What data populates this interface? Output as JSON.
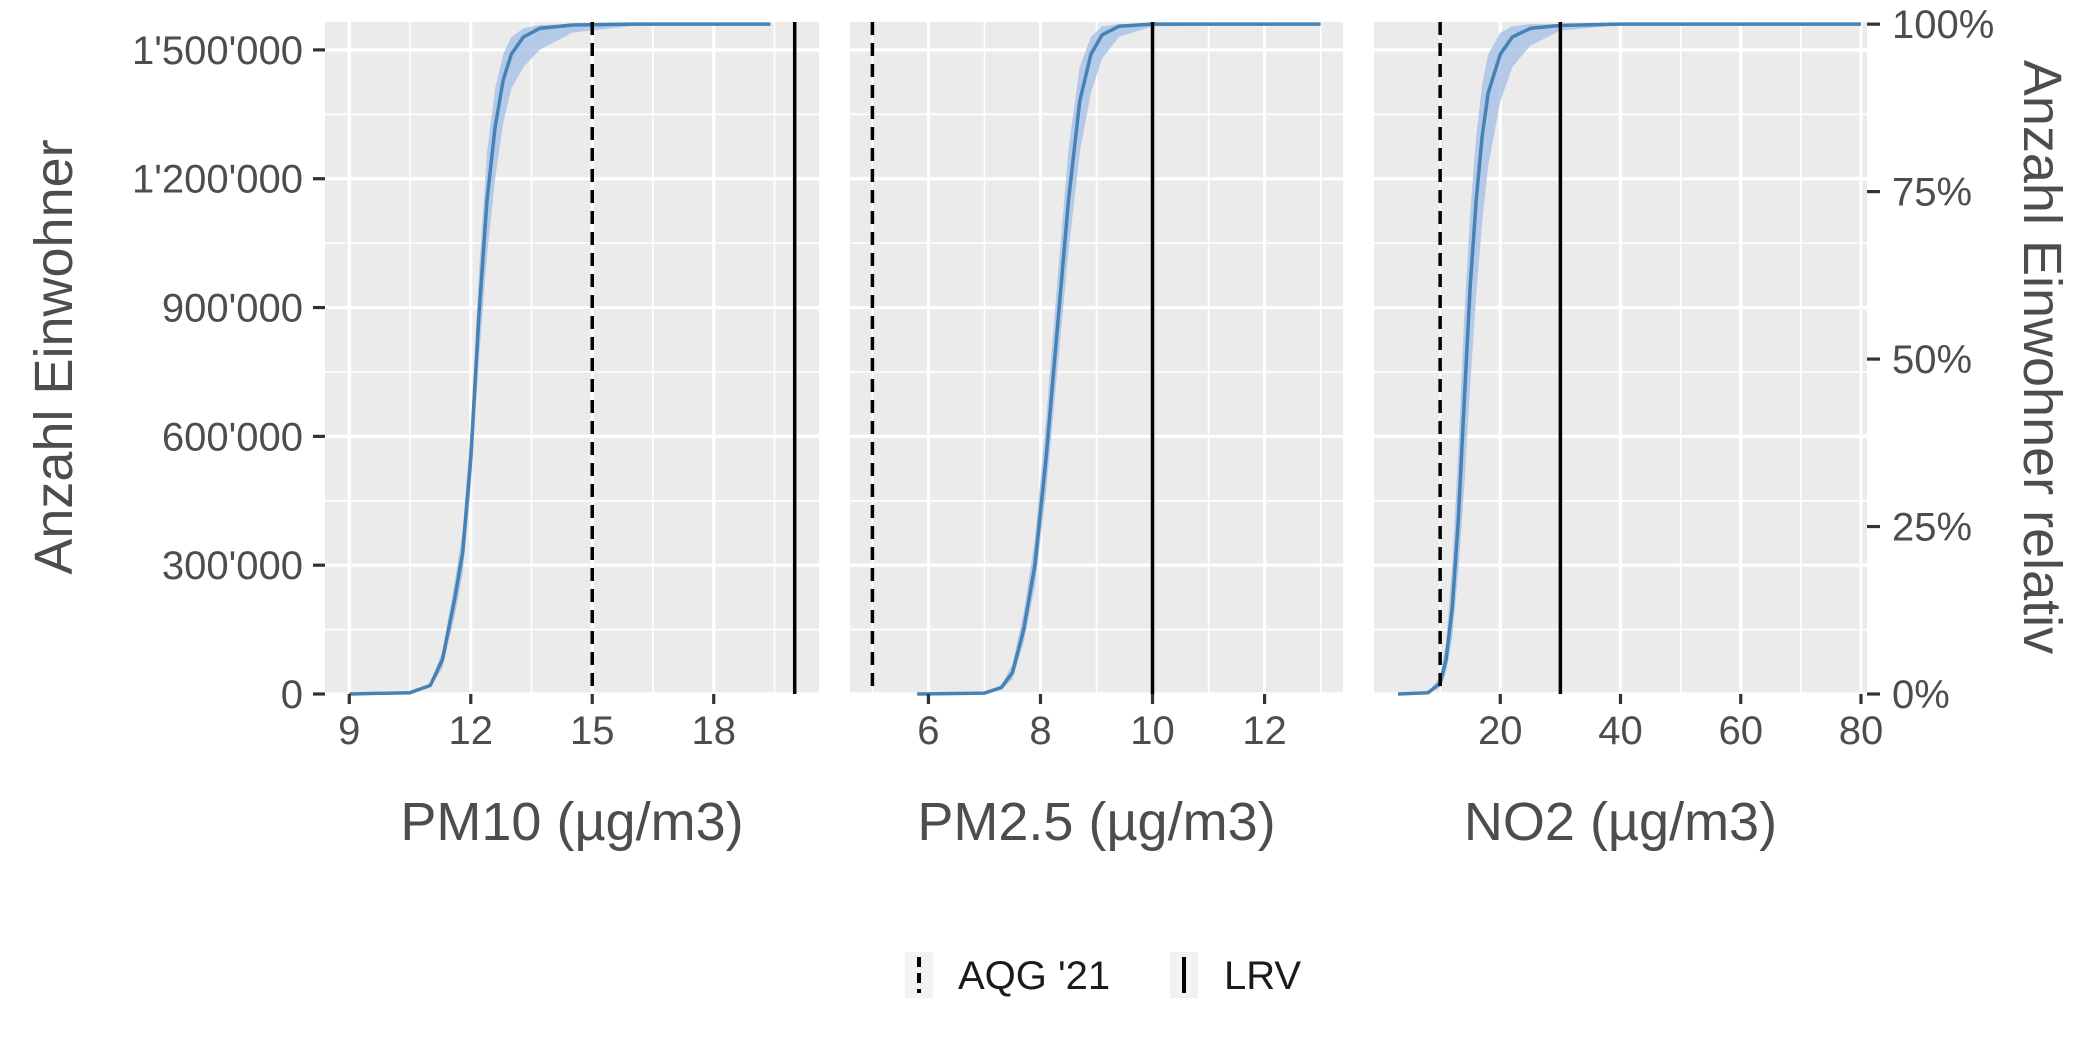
{
  "colors": {
    "panel_background": "#ebebeb",
    "grid": "#ffffff",
    "line": "#4682b4",
    "band": "#a9c3e6",
    "reference": "#000000",
    "tick_text": "#4d4d4d"
  },
  "chart_data": {
    "type": "line",
    "layout": "faceted cumulative distribution, 3 panels sharing y-axis",
    "y_left": {
      "label": "Anzahl Einwohner",
      "ticks": [
        "0",
        "300'000",
        "600'000",
        "900'000",
        "1'200'000",
        "1'500'000"
      ],
      "tick_values": [
        0,
        300000,
        600000,
        900000,
        1200000,
        1500000
      ],
      "range": [
        0,
        1565000
      ]
    },
    "y_right": {
      "label": "Anzahl Einwohner relativ",
      "ticks": [
        "0%",
        "25%",
        "50%",
        "75%",
        "100%"
      ],
      "tick_values": [
        0,
        0.25,
        0.5,
        0.75,
        1.0
      ]
    },
    "grid": true,
    "legend": {
      "position": "bottom",
      "items": [
        {
          "label": "AQG '21",
          "linetype": "dashed"
        },
        {
          "label": "LRV",
          "linetype": "solid"
        }
      ]
    },
    "panels": [
      {
        "xlabel": "PM10 (µg/m3)",
        "x_ticks": [
          "9",
          "12",
          "15",
          "18"
        ],
        "x_tick_values": [
          9,
          12,
          15,
          18
        ],
        "x_range": [
          8.4,
          20.6
        ],
        "aqg": 15,
        "lrv": 20,
        "series": [
          {
            "points": [
              [
                9,
                0
              ],
              [
                10.5,
                3000
              ],
              [
                11,
                20000
              ],
              [
                11.3,
                80000
              ],
              [
                11.6,
                220000
              ],
              [
                11.8,
                330000
              ],
              [
                12,
                550000
              ],
              [
                12.2,
                880000
              ],
              [
                12.4,
                1150000
              ],
              [
                12.6,
                1320000
              ],
              [
                12.8,
                1430000
              ],
              [
                13,
                1490000
              ],
              [
                13.3,
                1530000
              ],
              [
                13.7,
                1550000
              ],
              [
                14.5,
                1558000
              ],
              [
                16,
                1560000
              ],
              [
                19.4,
                1560000
              ]
            ],
            "upper": [
              [
                9,
                0
              ],
              [
                10.5,
                4000
              ],
              [
                11,
                25000
              ],
              [
                11.3,
                100000
              ],
              [
                11.6,
                260000
              ],
              [
                11.8,
                380000
              ],
              [
                12,
                620000
              ],
              [
                12.2,
                980000
              ],
              [
                12.4,
                1260000
              ],
              [
                12.6,
                1410000
              ],
              [
                12.8,
                1490000
              ],
              [
                13,
                1530000
              ],
              [
                13.3,
                1550000
              ],
              [
                13.7,
                1558000
              ],
              [
                14.5,
                1560000
              ],
              [
                16,
                1560000
              ],
              [
                19.4,
                1560000
              ]
            ],
            "lower": [
              [
                9,
                0
              ],
              [
                10.5,
                2000
              ],
              [
                11,
                15000
              ],
              [
                11.3,
                60000
              ],
              [
                11.6,
                180000
              ],
              [
                11.8,
                280000
              ],
              [
                12,
                480000
              ],
              [
                12.2,
                780000
              ],
              [
                12.4,
                1020000
              ],
              [
                12.6,
                1200000
              ],
              [
                12.8,
                1330000
              ],
              [
                13,
                1410000
              ],
              [
                13.3,
                1460000
              ],
              [
                13.7,
                1500000
              ],
              [
                14.5,
                1540000
              ],
              [
                16,
                1556000
              ],
              [
                19.4,
                1560000
              ]
            ]
          }
        ]
      },
      {
        "xlabel": "PM2.5 (µg/m3)",
        "x_ticks": [
          "6",
          "8",
          "10",
          "12"
        ],
        "x_tick_values": [
          6,
          8,
          10,
          12
        ],
        "x_range": [
          4.6,
          13.4
        ],
        "aqg": 5,
        "lrv": 10,
        "series": [
          {
            "points": [
              [
                5.8,
                0
              ],
              [
                7,
                2000
              ],
              [
                7.3,
                15000
              ],
              [
                7.5,
                50000
              ],
              [
                7.7,
                150000
              ],
              [
                7.9,
                300000
              ],
              [
                8.1,
                550000
              ],
              [
                8.3,
                850000
              ],
              [
                8.5,
                1150000
              ],
              [
                8.7,
                1380000
              ],
              [
                8.9,
                1490000
              ],
              [
                9.1,
                1535000
              ],
              [
                9.4,
                1555000
              ],
              [
                10,
                1560000
              ],
              [
                13,
                1560000
              ]
            ],
            "upper": [
              [
                5.8,
                0
              ],
              [
                7,
                3000
              ],
              [
                7.3,
                20000
              ],
              [
                7.5,
                70000
              ],
              [
                7.7,
                190000
              ],
              [
                7.9,
                360000
              ],
              [
                8.1,
                640000
              ],
              [
                8.3,
                960000
              ],
              [
                8.5,
                1270000
              ],
              [
                8.7,
                1460000
              ],
              [
                8.9,
                1530000
              ],
              [
                9.1,
                1555000
              ],
              [
                9.4,
                1560000
              ],
              [
                10,
                1560000
              ],
              [
                13,
                1560000
              ]
            ],
            "lower": [
              [
                5.8,
                0
              ],
              [
                7,
                1000
              ],
              [
                7.3,
                10000
              ],
              [
                7.5,
                35000
              ],
              [
                7.7,
                120000
              ],
              [
                7.9,
                250000
              ],
              [
                8.1,
                470000
              ],
              [
                8.3,
                750000
              ],
              [
                8.5,
                1030000
              ],
              [
                8.7,
                1260000
              ],
              [
                8.9,
                1400000
              ],
              [
                9.1,
                1480000
              ],
              [
                9.4,
                1530000
              ],
              [
                10,
                1555000
              ],
              [
                13,
                1560000
              ]
            ]
          }
        ]
      },
      {
        "xlabel": "NO2 (µg/m3)",
        "x_ticks": [
          "20",
          "40",
          "60",
          "80"
        ],
        "x_tick_values": [
          20,
          40,
          60,
          80
        ],
        "x_range": [
          -1,
          81
        ],
        "aqg": 10,
        "lrv": 30,
        "series": [
          {
            "points": [
              [
                3,
                0
              ],
              [
                8,
                3000
              ],
              [
                10,
                25000
              ],
              [
                11,
                80000
              ],
              [
                12,
                200000
              ],
              [
                13,
                400000
              ],
              [
                14,
                680000
              ],
              [
                15,
                950000
              ],
              [
                16,
                1150000
              ],
              [
                17,
                1300000
              ],
              [
                18,
                1400000
              ],
              [
                20,
                1490000
              ],
              [
                22,
                1530000
              ],
              [
                25,
                1550000
              ],
              [
                30,
                1557000
              ],
              [
                40,
                1560000
              ],
              [
                80,
                1560000
              ]
            ],
            "upper": [
              [
                3,
                0
              ],
              [
                8,
                4000
              ],
              [
                10,
                40000
              ],
              [
                11,
                120000
              ],
              [
                12,
                300000
              ],
              [
                13,
                560000
              ],
              [
                14,
                880000
              ],
              [
                15,
                1120000
              ],
              [
                16,
                1300000
              ],
              [
                17,
                1420000
              ],
              [
                18,
                1490000
              ],
              [
                20,
                1540000
              ],
              [
                22,
                1555000
              ],
              [
                25,
                1560000
              ],
              [
                30,
                1560000
              ],
              [
                40,
                1560000
              ],
              [
                80,
                1560000
              ]
            ],
            "lower": [
              [
                3,
                0
              ],
              [
                8,
                2000
              ],
              [
                10,
                15000
              ],
              [
                11,
                50000
              ],
              [
                12,
                130000
              ],
              [
                13,
                280000
              ],
              [
                14,
                480000
              ],
              [
                15,
                720000
              ],
              [
                16,
                930000
              ],
              [
                17,
                1100000
              ],
              [
                18,
                1230000
              ],
              [
                20,
                1380000
              ],
              [
                22,
                1460000
              ],
              [
                25,
                1510000
              ],
              [
                30,
                1545000
              ],
              [
                40,
                1558000
              ],
              [
                80,
                1560000
              ]
            ]
          }
        ]
      }
    ]
  }
}
